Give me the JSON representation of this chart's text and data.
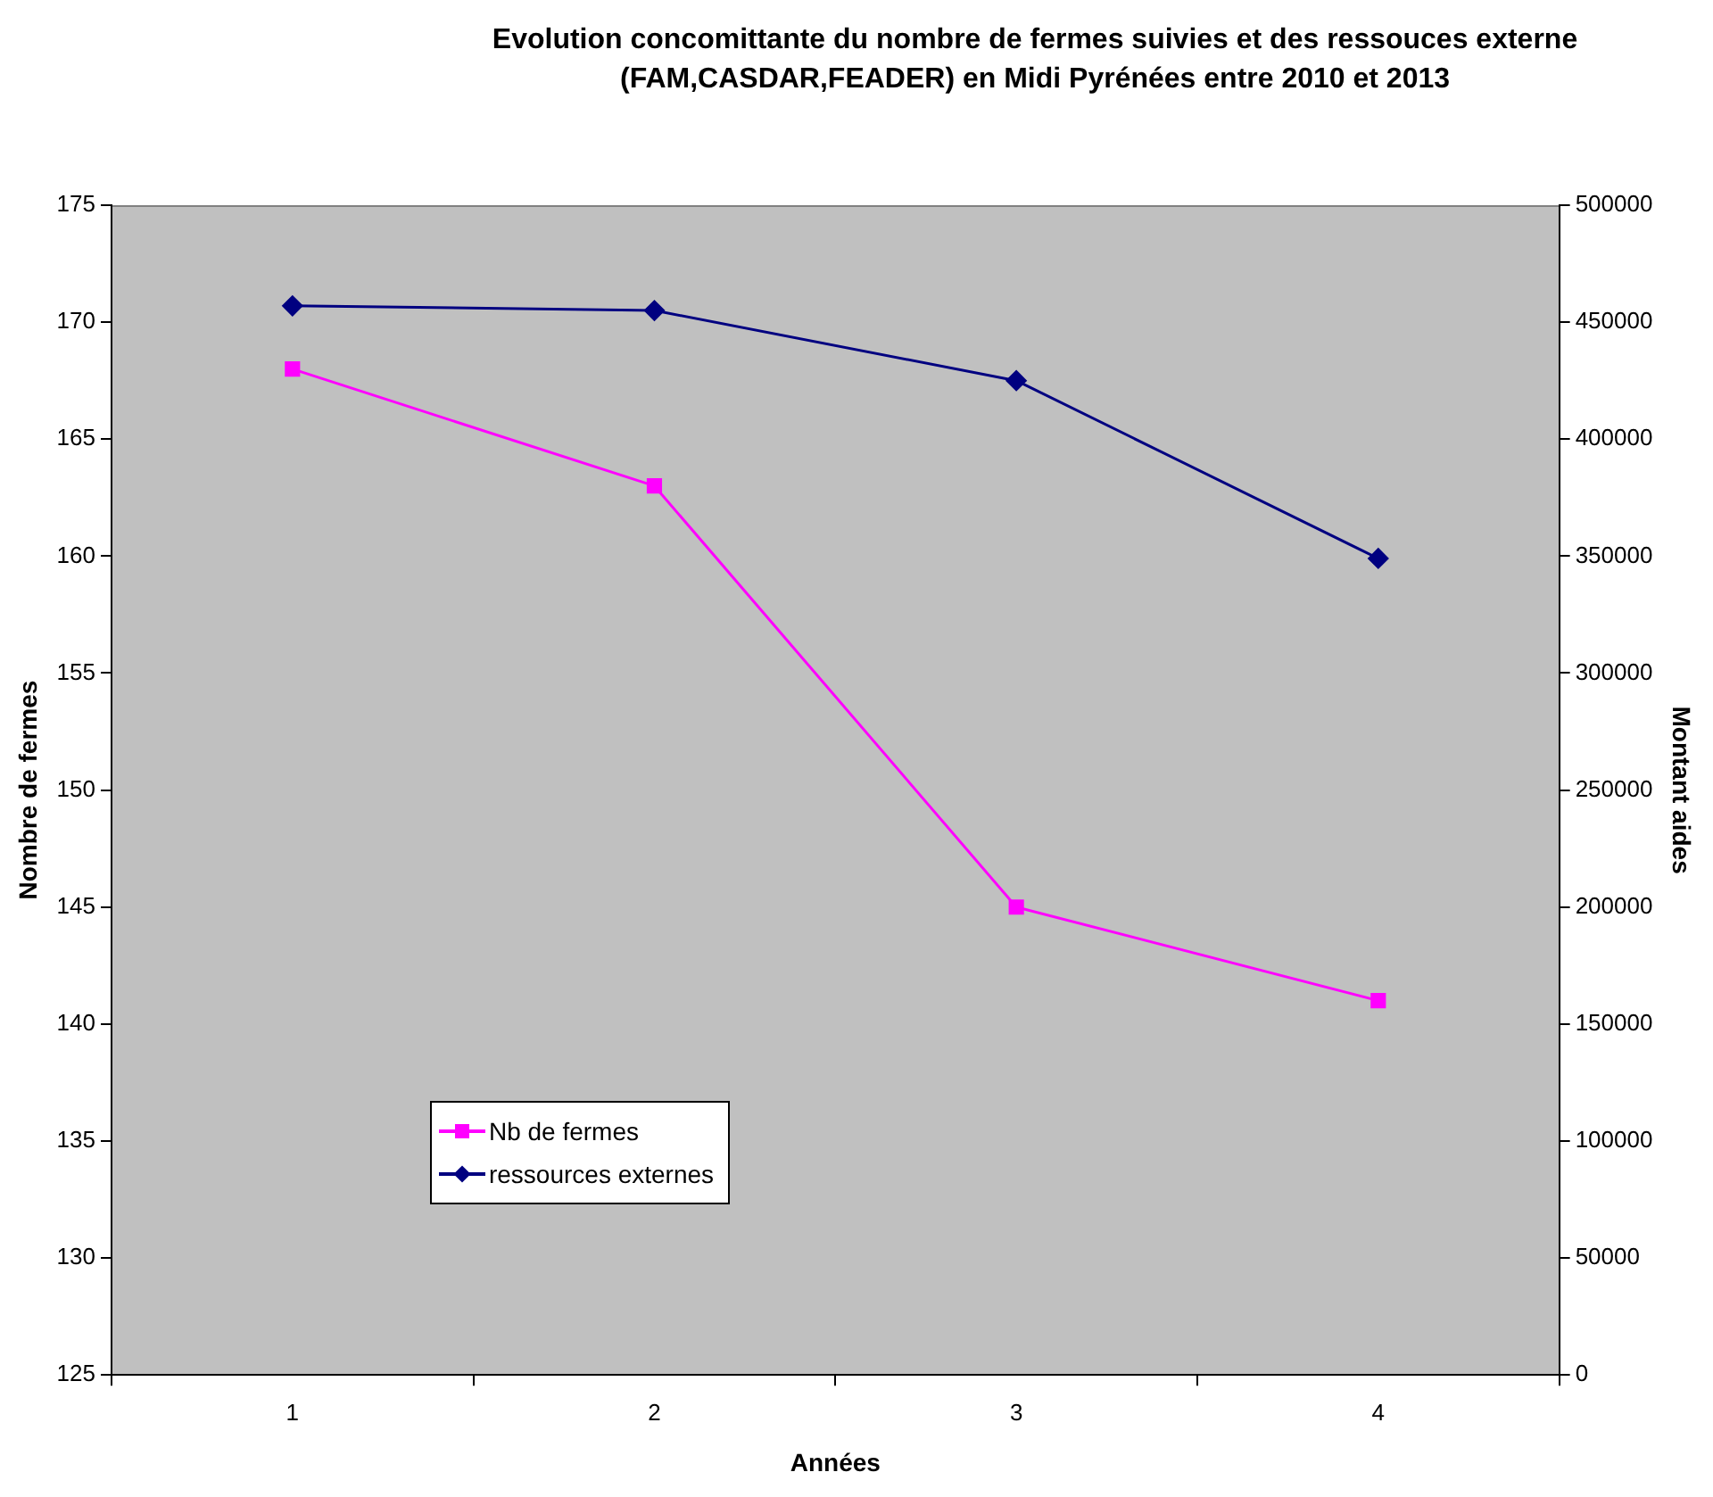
{
  "chart_data": {
    "type": "line",
    "title": "Evolution concomittante du nombre de fermes suivies et des ressouces externe\n(FAM,CASDAR,FEADER) en Midi Pyrénées entre 2010 et 2013",
    "xlabel": "Années",
    "ylabel": "Nombre de fermes",
    "y2label": "Montant aides",
    "categories": [
      "1",
      "2",
      "3",
      "4"
    ],
    "series": [
      {
        "name": "Nb de fermes",
        "color": "#ff00ff",
        "values": [
          168,
          163,
          145,
          141
        ],
        "marker": "square"
      },
      {
        "name": "ressources externes",
        "color": "#000080",
        "values": [
          457000,
          455000,
          425000,
          349000
        ],
        "axis": "y2",
        "marker": "diamond"
      }
    ],
    "ylim": [
      125,
      175
    ],
    "yticks": [
      125,
      130,
      135,
      140,
      145,
      150,
      155,
      160,
      165,
      170,
      175
    ],
    "y2lim": [
      0,
      500000
    ],
    "y2ticks": [
      0,
      50000,
      100000,
      150000,
      200000,
      250000,
      300000,
      350000,
      400000,
      450000,
      500000
    ],
    "grid": false,
    "legend": "bottom left",
    "line_style": "solid"
  }
}
